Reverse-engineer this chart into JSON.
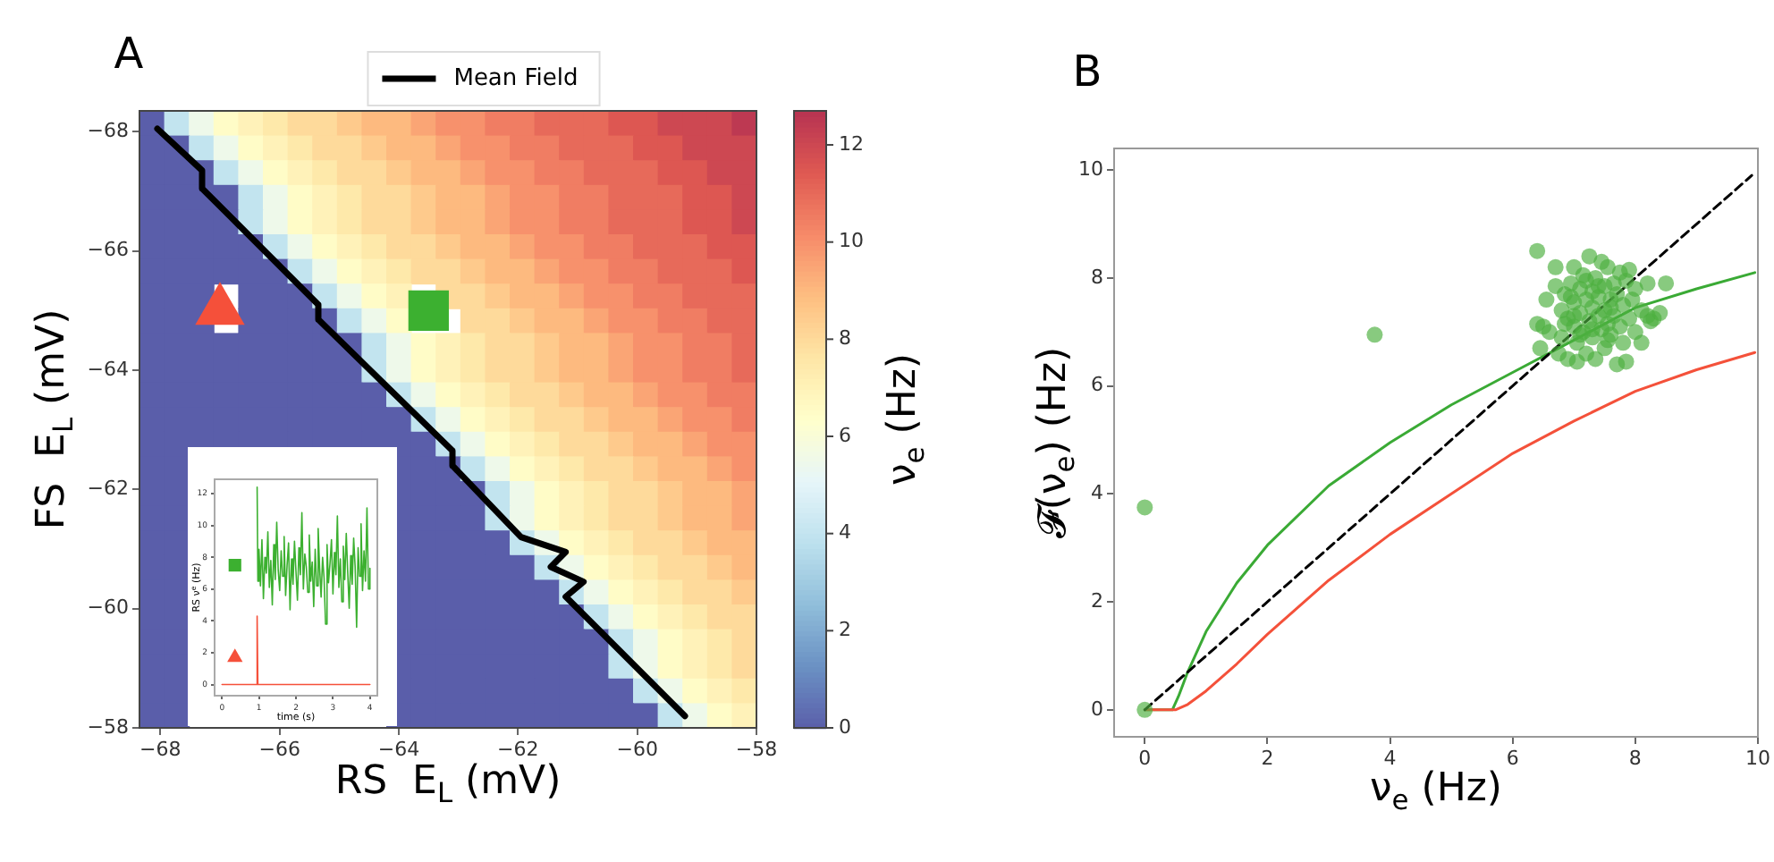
{
  "chart_data": [
    {
      "type": "heatmap",
      "title": "A",
      "xlabel": "RS  E$_{L}$ (mV)",
      "ylabel": "FS  E$_{L}$ (mV)",
      "clabel": "ν$_{e}$ (Hz)",
      "xlim": [
        -68.35,
        -58
      ],
      "ylim": [
        -58,
        -68.35
      ],
      "xticks": [
        -68,
        -66,
        -64,
        -62,
        -60,
        -58
      ],
      "yticks": [
        -68,
        -66,
        -64,
        -62,
        -60,
        -58
      ],
      "clim": [
        0,
        12.7
      ],
      "cticks": [
        0,
        2,
        4,
        6,
        8,
        10,
        12
      ],
      "legend": "top",
      "cells": [
        [
          0,
          4,
          5.5,
          6.5,
          7,
          7.5,
          8,
          8,
          8.5,
          9,
          9,
          9.5,
          10,
          10,
          10.5,
          10.5,
          11,
          11,
          11,
          11.5,
          11.5,
          12,
          12,
          12,
          12.5
        ],
        [
          0,
          0,
          4,
          5.5,
          6.5,
          7,
          7.5,
          8,
          8,
          8.5,
          9,
          9,
          9.5,
          10,
          10,
          10.5,
          10.5,
          11,
          11,
          11,
          11.5,
          11.5,
          12,
          12,
          12
        ],
        [
          0,
          0,
          0,
          4,
          5.5,
          6.5,
          7,
          7.5,
          8,
          8,
          8.5,
          9,
          9,
          9.5,
          10,
          10,
          10.5,
          10.5,
          11,
          11,
          11,
          11.5,
          11.5,
          12,
          12
        ],
        [
          0,
          0,
          0,
          0,
          4,
          5.5,
          6.5,
          7,
          7.5,
          8,
          8,
          8.5,
          9,
          9,
          9.5,
          10,
          10,
          10.5,
          10.5,
          11,
          11,
          11,
          11.5,
          11.5,
          12
        ],
        [
          0,
          0,
          0,
          0,
          4,
          5.5,
          6.5,
          7,
          7.5,
          8,
          8,
          8.5,
          9,
          9,
          9.5,
          10,
          10,
          10.5,
          10.5,
          11,
          11,
          11,
          11.5,
          11.5,
          12
        ],
        [
          0,
          0,
          0,
          0,
          0,
          4,
          5.5,
          6.5,
          7,
          7.5,
          8,
          8,
          8.5,
          9,
          9,
          9.5,
          10,
          10,
          10.5,
          10.5,
          11,
          11,
          11,
          11.5,
          11.5
        ],
        [
          0,
          0,
          0,
          0,
          0,
          0,
          4,
          5.5,
          6.5,
          7,
          7.5,
          8,
          8,
          8.5,
          9,
          9,
          9.5,
          10,
          10,
          10.5,
          10.5,
          11,
          11,
          11,
          11.5
        ],
        [
          0,
          0,
          0,
          null,
          0,
          0,
          0,
          4,
          5.5,
          6.5,
          7,
          null,
          8,
          8,
          8.5,
          9,
          9,
          9.5,
          10,
          10,
          10.5,
          10.5,
          11,
          11,
          11
        ],
        [
          0,
          0,
          0,
          null,
          0,
          0,
          0,
          0,
          4,
          5.5,
          6.5,
          null,
          null,
          8,
          8,
          8.5,
          9,
          9,
          9.5,
          10,
          10,
          10.5,
          10.5,
          11,
          11
        ],
        [
          0,
          0,
          0,
          0,
          0,
          0,
          0,
          0,
          0,
          4,
          5.5,
          6.5,
          7,
          7.5,
          8,
          8,
          8.5,
          9,
          9,
          9.5,
          10,
          10,
          10.5,
          10.5,
          11
        ],
        [
          0,
          0,
          0,
          0,
          0,
          0,
          0,
          0,
          0,
          4,
          5.5,
          6.5,
          7,
          7.5,
          8,
          8,
          8.5,
          9,
          9,
          9.5,
          10,
          10,
          10.5,
          10.5,
          11
        ],
        [
          0,
          0,
          0,
          0,
          0,
          0,
          0,
          0,
          0,
          0,
          4,
          5.5,
          6.5,
          7,
          7.5,
          8,
          8,
          8.5,
          9,
          9,
          9.5,
          10,
          10,
          10.5,
          10.5
        ],
        [
          0,
          0,
          0,
          0,
          0,
          0,
          0,
          0,
          0,
          0,
          0,
          4,
          5.5,
          6.5,
          7,
          7.5,
          8,
          8,
          8.5,
          9,
          9,
          9.5,
          10,
          10,
          10.5
        ],
        [
          0,
          0,
          0,
          0,
          0,
          0,
          0,
          0,
          0,
          0,
          0,
          0,
          4,
          5.5,
          6.5,
          7,
          7.5,
          8,
          8,
          8.5,
          9,
          9,
          9.5,
          10,
          10
        ],
        [
          0,
          0,
          null,
          null,
          null,
          null,
          null,
          null,
          null,
          null,
          0,
          0,
          0,
          4,
          5.5,
          6.5,
          7,
          7.5,
          8,
          8,
          8.5,
          9,
          9,
          9.5,
          10
        ],
        [
          0,
          0,
          null,
          null,
          null,
          null,
          null,
          null,
          null,
          null,
          0,
          0,
          0,
          0,
          4,
          5.5,
          6.5,
          7,
          7.5,
          8,
          8,
          8.5,
          9,
          9,
          9.5
        ],
        [
          0,
          0,
          null,
          null,
          null,
          null,
          null,
          null,
          null,
          null,
          0,
          0,
          0,
          0,
          4,
          5.5,
          6.5,
          7,
          7.5,
          8,
          8,
          8.5,
          9,
          9,
          9.5
        ],
        [
          0,
          0,
          null,
          null,
          null,
          null,
          null,
          null,
          null,
          null,
          0,
          0,
          0,
          0,
          0,
          4,
          5.5,
          6.5,
          7,
          7.5,
          8,
          8,
          8.5,
          9,
          9
        ],
        [
          0,
          0,
          null,
          null,
          null,
          null,
          null,
          null,
          null,
          null,
          0,
          0,
          0,
          0,
          0,
          0,
          4,
          5.5,
          6.5,
          7,
          7.5,
          8,
          8,
          8.5,
          9
        ],
        [
          0,
          0,
          null,
          null,
          null,
          null,
          null,
          null,
          null,
          null,
          0,
          0,
          0,
          0,
          0,
          0,
          0,
          4,
          5.5,
          6.5,
          7,
          7.5,
          8,
          8,
          8.5
        ],
        [
          0,
          0,
          null,
          null,
          null,
          null,
          null,
          null,
          null,
          null,
          0,
          0,
          0,
          0,
          0,
          0,
          0,
          0,
          4,
          5.5,
          6.5,
          7,
          7.5,
          8,
          8
        ],
        [
          0,
          0,
          null,
          null,
          null,
          null,
          null,
          null,
          null,
          null,
          0,
          0,
          0,
          0,
          0,
          0,
          0,
          0,
          0,
          4,
          5.5,
          6.5,
          7,
          7.5,
          8
        ],
        [
          0,
          0,
          null,
          null,
          null,
          null,
          null,
          null,
          null,
          null,
          0,
          0,
          0,
          0,
          0,
          0,
          0,
          0,
          0,
          4,
          5.5,
          6.5,
          7,
          7.5,
          8
        ],
        [
          0,
          0,
          null,
          null,
          null,
          null,
          null,
          null,
          null,
          null,
          0,
          0,
          0,
          0,
          0,
          0,
          0,
          0,
          0,
          0,
          4,
          5.5,
          6.5,
          7,
          7.5
        ],
        [
          0,
          0,
          null,
          null,
          null,
          null,
          null,
          null,
          null,
          null,
          0,
          0,
          0,
          0,
          0,
          0,
          0,
          0,
          0,
          0,
          0,
          4,
          5.5,
          6.5,
          7
        ]
      ],
      "series": [
        {
          "type": "line",
          "name": "Mean Field",
          "color": "#000000",
          "x": [
            -68.05,
            -67.3,
            -67.3,
            -65.35,
            -65.35,
            -63.1,
            -63.1,
            -61.95,
            -61.2,
            -61.45,
            -60.9,
            -61.2,
            -59.2
          ],
          "values": [
            -68.05,
            -67.35,
            -67.05,
            -65.1,
            -64.85,
            -62.65,
            -62.4,
            -61.2,
            -60.95,
            -60.7,
            -60.45,
            -60.2,
            -58.2
          ]
        },
        {
          "type": "scatter",
          "color": "#f5503a",
          "marker": "triangle",
          "x": [
            -67
          ],
          "values": [
            -65
          ]
        },
        {
          "type": "scatter",
          "color": "#3cb030",
          "marker": "square",
          "x": [
            -63.5
          ],
          "values": [
            -65
          ]
        }
      ]
    },
    {
      "type": "line",
      "xlabel": "time (s)",
      "ylabel": "RS ν$^{e}$ (Hz)",
      "xlim": [
        -0.2,
        4.2
      ],
      "ylim": [
        -0.7,
        12.9
      ],
      "xticks": [
        0,
        1,
        2,
        3,
        4
      ],
      "yticks": [
        0,
        2,
        4,
        6,
        8,
        10,
        12
      ],
      "series": [
        {
          "type": "line",
          "color": "#f5503a",
          "x": [
            0,
            0.95,
            0.95,
            0.97,
            4
          ],
          "values": [
            0,
            0,
            4.3,
            0,
            0
          ]
        },
        {
          "type": "line",
          "color": "#3cb030",
          "x": [
            0.95,
            0.97,
            1.0,
            1.04,
            1.08,
            1.12,
            1.16,
            1.2,
            1.24,
            1.28,
            1.32,
            1.36,
            1.4,
            1.44,
            1.48,
            1.52,
            1.56,
            1.6,
            1.64,
            1.68,
            1.72,
            1.76,
            1.8,
            1.84,
            1.88,
            1.92,
            1.96,
            2.0,
            2.04,
            2.08,
            2.12,
            2.16,
            2.2,
            2.24,
            2.28,
            2.32,
            2.36,
            2.4,
            2.44,
            2.48,
            2.52,
            2.56,
            2.6,
            2.64,
            2.68,
            2.72,
            2.76,
            2.8,
            2.84,
            2.88,
            2.92,
            2.96,
            3.0,
            3.04,
            3.08,
            3.12,
            3.16,
            3.2,
            3.24,
            3.28,
            3.32,
            3.36,
            3.4,
            3.44,
            3.48,
            3.52,
            3.56,
            3.6,
            3.64,
            3.68,
            3.72,
            3.76,
            3.8,
            3.84,
            3.88,
            3.92,
            3.96,
            4.0
          ],
          "values": [
            12.4,
            6.5,
            8.5,
            6.2,
            9.1,
            5.4,
            8.0,
            7.0,
            9.6,
            6.1,
            7.8,
            5.0,
            8.8,
            6.6,
            10.2,
            7.2,
            5.9,
            8.4,
            6.8,
            9.3,
            5.6,
            7.5,
            8.9,
            4.7,
            7.9,
            6.3,
            9.0,
            7.1,
            5.3,
            8.6,
            6.9,
            10.8,
            6.0,
            8.2,
            7.4,
            5.8,
            9.4,
            6.5,
            7.7,
            4.9,
            8.5,
            6.2,
            9.8,
            7.3,
            5.5,
            8.0,
            6.7,
            3.8,
            8.8,
            6.4,
            7.6,
            9.1,
            5.7,
            8.3,
            6.9,
            10.6,
            6.1,
            7.9,
            5.2,
            8.7,
            6.6,
            9.5,
            7.0,
            4.8,
            8.1,
            6.3,
            9.2,
            7.4,
            3.6,
            8.6,
            6.8,
            10.1,
            5.9,
            8.4,
            6.5,
            11.1,
            6.0,
            7.3
          ]
        },
        {
          "type": "scatter",
          "color": "#3cb030",
          "marker": "square",
          "x": [
            0.35
          ],
          "values": [
            7.5
          ]
        },
        {
          "type": "scatter",
          "color": "#f5503a",
          "marker": "triangle",
          "x": [
            0.35
          ],
          "values": [
            1.7
          ]
        }
      ]
    },
    {
      "type": "scatter",
      "title": "B",
      "xlabel": "ν$_{e}$ (Hz)",
      "ylabel": "𝓕(ν$_{e}$) (Hz)",
      "xlim": [
        -0.5,
        10
      ],
      "ylim": [
        -0.5,
        10.4
      ],
      "xticks": [
        0,
        2,
        4,
        6,
        8,
        10
      ],
      "yticks": [
        0,
        2,
        4,
        6,
        8,
        10
      ],
      "series": [
        {
          "type": "line",
          "color": "#3aaa35",
          "x": [
            0,
            0.45,
            0.55,
            0.7,
            1,
            1.5,
            2,
            3,
            4,
            5,
            6,
            7,
            8,
            9,
            9.95
          ],
          "values": [
            0,
            0,
            0.25,
            0.7,
            1.45,
            2.35,
            3.05,
            4.15,
            4.95,
            5.65,
            6.25,
            6.85,
            7.45,
            7.8,
            8.1
          ]
        },
        {
          "type": "line",
          "color": "#f4513a",
          "x": [
            0,
            0.5,
            0.7,
            1,
            1.5,
            2,
            3,
            4,
            5,
            6,
            7,
            8,
            9,
            9.95
          ],
          "values": [
            0,
            0,
            0.1,
            0.35,
            0.85,
            1.4,
            2.4,
            3.25,
            4.0,
            4.75,
            5.35,
            5.9,
            6.3,
            6.62
          ]
        },
        {
          "type": "line",
          "color": "#000000",
          "line_style": "dashed",
          "x": [
            0,
            9.9
          ],
          "values": [
            0,
            9.9
          ]
        },
        {
          "type": "scatter",
          "color": "#4caf3f",
          "marker": "circle",
          "x": [
            0,
            0,
            3.75,
            6.4,
            6.4,
            6.5,
            6.45,
            6.55,
            6.6,
            6.7,
            6.7,
            6.75,
            6.8,
            6.8,
            6.85,
            6.9,
            6.9,
            6.95,
            7.0,
            7.0,
            7.0,
            7.05,
            7.05,
            7.1,
            7.1,
            7.15,
            7.15,
            7.2,
            7.2,
            7.25,
            7.25,
            7.3,
            7.3,
            7.3,
            7.35,
            7.35,
            7.4,
            7.4,
            7.45,
            7.45,
            7.5,
            7.5,
            7.5,
            7.55,
            7.55,
            7.6,
            7.6,
            7.65,
            7.65,
            7.7,
            7.7,
            7.75,
            7.75,
            7.8,
            7.8,
            7.85,
            7.85,
            7.9,
            7.9,
            7.95,
            8.0,
            8.0,
            8.1,
            8.2,
            8.2,
            8.25,
            8.3,
            8.4,
            8.5,
            8.1,
            7.2,
            7.0,
            6.95,
            7.1,
            7.4,
            7.6,
            7.3,
            7.55,
            6.85
          ],
          "values": [
            0,
            3.75,
            6.95,
            8.5,
            7.15,
            7.1,
            6.7,
            7.6,
            7.0,
            8.2,
            7.85,
            6.6,
            7.4,
            6.9,
            7.7,
            7.25,
            6.5,
            7.9,
            8.2,
            7.55,
            7.1,
            6.45,
            6.8,
            7.8,
            7.35,
            7.0,
            8.05,
            7.6,
            6.6,
            8.4,
            7.2,
            7.75,
            6.9,
            7.45,
            8.0,
            6.5,
            7.3,
            7.65,
            8.3,
            7.05,
            7.85,
            6.7,
            7.4,
            8.2,
            7.15,
            7.6,
            6.95,
            7.9,
            7.3,
            7.7,
            6.4,
            8.1,
            7.1,
            7.5,
            6.8,
            7.95,
            6.45,
            7.25,
            8.15,
            7.6,
            7.0,
            7.8,
            7.4,
            7.3,
            7.9,
            7.2,
            7.25,
            7.35,
            7.9,
            6.8,
            7.95,
            7.3,
            7.65,
            6.95,
            7.85,
            7.45,
            7.05,
            6.85,
            7.15
          ]
        }
      ]
    }
  ]
}
